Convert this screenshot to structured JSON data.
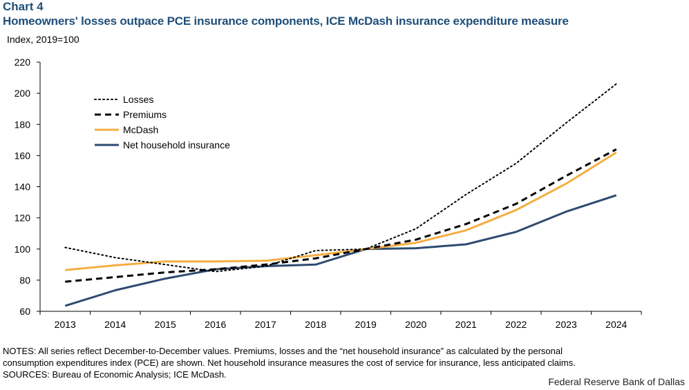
{
  "header": {
    "chart_label": "Chart 4",
    "title": "Homeowners' losses outpace PCE insurance components, ICE McDash insurance expenditure measure",
    "unit": "Index,  2019=100"
  },
  "chart_data": {
    "type": "line",
    "title": "Homeowners' losses outpace PCE insurance components, ICE McDash insurance expenditure measure",
    "ylabel": "Index, 2019=100",
    "xlabel": "",
    "categories": [
      "2013",
      "2014",
      "2015",
      "2016",
      "2017",
      "2018",
      "2019",
      "2020",
      "2021",
      "2022",
      "2023",
      "2024"
    ],
    "ylim": [
      60,
      220
    ],
    "yticks": [
      60,
      80,
      100,
      120,
      140,
      160,
      180,
      200,
      220
    ],
    "grid": false,
    "legend_position": "top-left",
    "series": [
      {
        "name": "Losses",
        "style": "dotted",
        "color": "#000000",
        "values": [
          101,
          94.5,
          90,
          85.5,
          89,
          99,
          100,
          113,
          135,
          155,
          181,
          206
        ]
      },
      {
        "name": "Premiums",
        "style": "dashed",
        "color": "#000000",
        "values": [
          79,
          82,
          85,
          87,
          90,
          94,
          100,
          106,
          116,
          129,
          147,
          164
        ]
      },
      {
        "name": "McDash",
        "style": "solid",
        "color": "#f5ad42",
        "values": [
          86.5,
          89.5,
          92,
          92,
          92.5,
          96,
          100,
          104,
          112,
          125,
          142,
          162
        ]
      },
      {
        "name": "Net household insurance",
        "style": "solid",
        "color": "#2e4a70",
        "values": [
          63.5,
          73.5,
          81,
          87,
          89,
          90,
          100,
          100.5,
          103,
          111,
          124,
          134.5
        ]
      }
    ]
  },
  "notes": {
    "line1": "NOTES: All series reflect December-to-December values. Premiums, losses and the “net household insurance” as calculated by the personal",
    "line2": "consumption expenditures index (PCE) are shown. Net household insurance measures the cost of service for insurance, less anticipated claims.",
    "line3": "SOURCES: Bureau of Economic Analysis; ICE McDash."
  },
  "credit": "Federal Reserve Bank of Dallas"
}
